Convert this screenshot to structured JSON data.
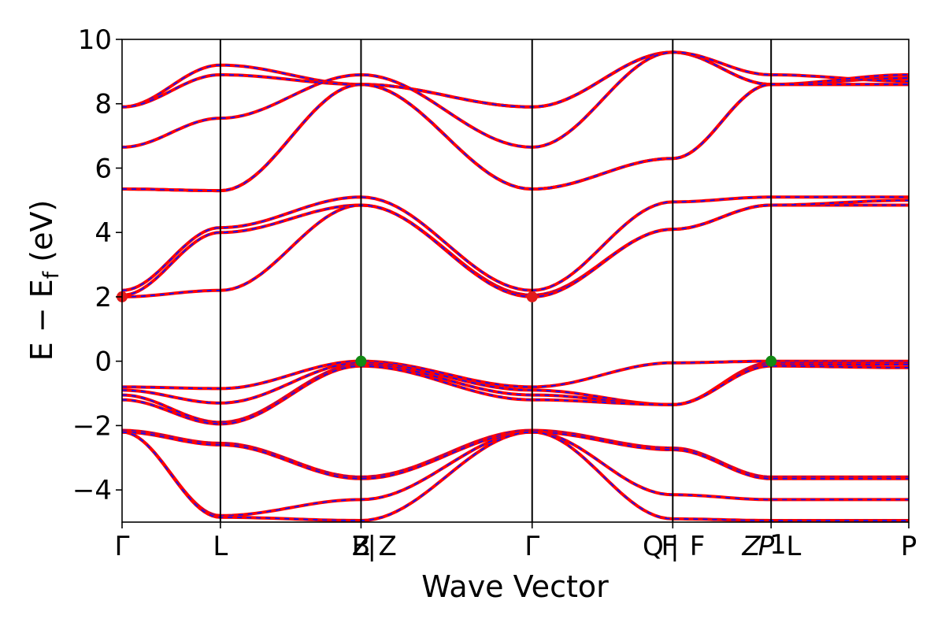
{
  "chart_data": {
    "type": "line",
    "xlabel": "Wave Vector",
    "ylabel": "E − E",
    "ylabel_sub": "f",
    "ylabel_unit": " (eV)",
    "ylim": [
      -5,
      10
    ],
    "yticks": [
      {
        "v": 10,
        "label": "10"
      },
      {
        "v": 8,
        "label": "8"
      },
      {
        "v": 6,
        "label": "6"
      },
      {
        "v": 4,
        "label": "4"
      },
      {
        "v": 2,
        "label": "2"
      },
      {
        "v": 0,
        "label": "0"
      },
      {
        "v": -2,
        "label": "−2"
      },
      {
        "v": -4,
        "label": "−4"
      }
    ],
    "xlim": [
      0,
      8
    ],
    "kpoints": [
      {
        "x": 0.0,
        "label": "Γ"
      },
      {
        "x": 1.0,
        "label": "L"
      },
      {
        "x": 2.43,
        "label": "B"
      },
      {
        "x": 2.43,
        "label": "Z"
      },
      {
        "x": 2.54,
        "label": "|"
      },
      {
        "x": 2.7,
        "label": "Z"
      },
      {
        "x": 4.17,
        "label": "Γ"
      },
      {
        "x": 5.4,
        "label": "Q"
      },
      {
        "x": 5.56,
        "label": "F"
      },
      {
        "x": 5.62,
        "label": "|"
      },
      {
        "x": 5.85,
        "label": "F"
      },
      {
        "x": 6.4,
        "label": "Z"
      },
      {
        "x": 6.55,
        "label": "P"
      },
      {
        "x": 6.67,
        "label": "1"
      },
      {
        "x": 6.83,
        "label": "L"
      },
      {
        "x": 8.0,
        "label": "P"
      }
    ],
    "vlines": [
      1.0,
      2.43,
      4.17,
      5.6,
      6.6
    ],
    "bands": [
      {
        "x": [
          0,
          1,
          2.43,
          4.17,
          5.6,
          6.6,
          8
        ],
        "y": [
          7.9,
          9.2,
          8.6,
          7.9,
          9.6,
          8.6,
          8.8
        ]
      },
      {
        "x": [
          0,
          1,
          2.43,
          4.17,
          5.6,
          6.6,
          8
        ],
        "y": [
          7.9,
          8.9,
          8.6,
          7.9,
          9.6,
          8.6,
          8.6
        ]
      },
      {
        "x": [
          0,
          1,
          2.43,
          4.17,
          5.6,
          6.6,
          8
        ],
        "y": [
          6.65,
          7.55,
          8.9,
          6.65,
          9.6,
          8.9,
          8.7
        ]
      },
      {
        "x": [
          0,
          1,
          2.43,
          4.17,
          5.6,
          6.6,
          8
        ],
        "y": [
          5.35,
          5.3,
          8.6,
          5.35,
          6.3,
          8.6,
          8.9
        ]
      },
      {
        "x": [
          0,
          1,
          2.43,
          4.17,
          5.6,
          6.6,
          8
        ],
        "y": [
          5.35,
          5.3,
          8.6,
          5.35,
          6.3,
          8.6,
          8.6
        ]
      },
      {
        "x": [
          0,
          1,
          2.43,
          4.17,
          5.6,
          6.6,
          8
        ],
        "y": [
          2.2,
          4.15,
          5.1,
          2.2,
          4.95,
          5.1,
          5.1
        ]
      },
      {
        "x": [
          0,
          1,
          2.43,
          4.17,
          5.6,
          6.6,
          8
        ],
        "y": [
          2.05,
          4.0,
          4.85,
          2.05,
          4.1,
          4.85,
          4.85
        ]
      },
      {
        "x": [
          0,
          1,
          2.43,
          4.17,
          5.6,
          6.6,
          8
        ],
        "y": [
          2.0,
          2.2,
          4.85,
          2.0,
          4.1,
          4.85,
          5.0
        ]
      },
      {
        "x": [
          0,
          1,
          2.43,
          4.17,
          5.6,
          6.6,
          8
        ],
        "y": [
          -0.8,
          -0.85,
          0.0,
          -0.8,
          -0.05,
          0.0,
          0.0
        ]
      },
      {
        "x": [
          0,
          1,
          2.43,
          4.17,
          5.6,
          6.6,
          8
        ],
        "y": [
          -0.9,
          -1.3,
          -0.05,
          -0.9,
          -1.35,
          -0.05,
          -0.05
        ]
      },
      {
        "x": [
          0,
          1,
          2.43,
          4.17,
          5.6,
          6.6,
          8
        ],
        "y": [
          -1.05,
          -1.9,
          -0.1,
          -1.05,
          -1.35,
          -0.1,
          -0.1
        ]
      },
      {
        "x": [
          0,
          1,
          2.43,
          4.17,
          5.6,
          6.6,
          8
        ],
        "y": [
          -1.2,
          -1.95,
          -0.15,
          -1.2,
          -1.35,
          -0.15,
          -0.2
        ]
      },
      {
        "x": [
          0,
          1,
          2.43,
          4.17,
          5.6,
          6.6,
          8
        ],
        "y": [
          -2.15,
          -2.55,
          -3.6,
          -2.15,
          -2.7,
          -3.6,
          -3.6
        ]
      },
      {
        "x": [
          0,
          1,
          2.43,
          4.17,
          5.6,
          6.6,
          8
        ],
        "y": [
          -2.2,
          -2.6,
          -3.65,
          -2.2,
          -2.75,
          -3.65,
          -3.65
        ]
      },
      {
        "x": [
          0,
          1,
          2.43,
          4.17,
          5.6,
          6.6,
          8
        ],
        "y": [
          -2.2,
          -4.8,
          -4.3,
          -2.2,
          -4.15,
          -4.3,
          -4.3
        ]
      },
      {
        "x": [
          0,
          1,
          2.43,
          4.17,
          5.6,
          6.6,
          8
        ],
        "y": [
          -2.2,
          -4.85,
          -4.95,
          -2.2,
          -4.9,
          -4.95,
          -4.95
        ]
      }
    ],
    "markers": [
      {
        "x": 0.0,
        "y": 2.0,
        "color": "#e21b1b"
      },
      {
        "x": 4.17,
        "y": 2.0,
        "color": "#e21b1b"
      },
      {
        "x": 2.43,
        "y": 0.0,
        "color": "#138a13"
      },
      {
        "x": 6.6,
        "y": 0.0,
        "color": "#138a13"
      }
    ],
    "colors": {
      "band": "#ff0000",
      "band_dash": "#1010ff",
      "vline": "#000000",
      "axis": "#000000"
    }
  }
}
